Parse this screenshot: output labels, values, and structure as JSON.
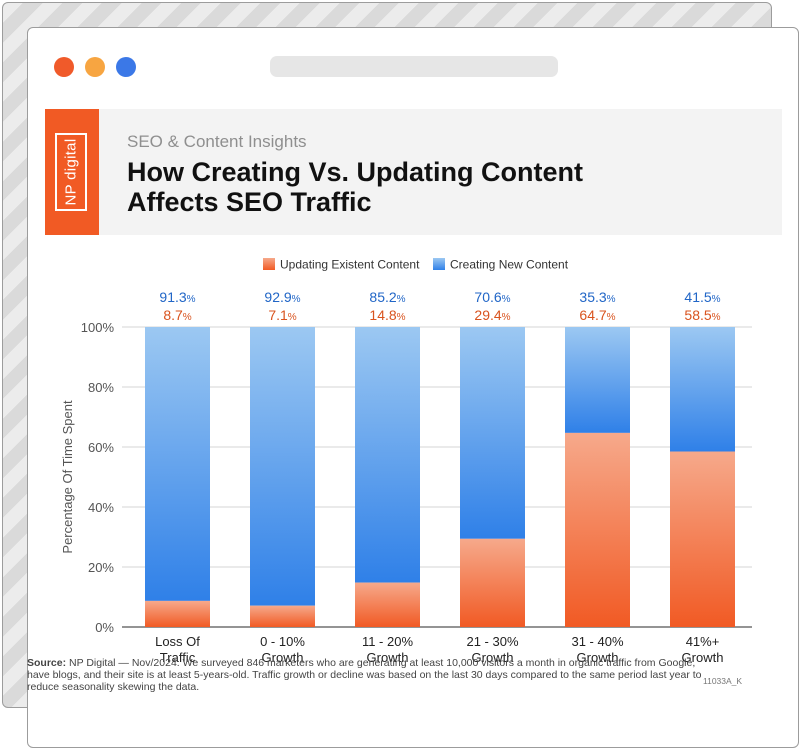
{
  "header": {
    "brand": "NP digital",
    "subtitle": "SEO & Content Insights",
    "title_line1": "How Creating Vs. Updating Content",
    "title_line2": "Affects SEO Traffic"
  },
  "chart_data": {
    "type": "bar",
    "stacked": true,
    "ylabel": "Percentage Of Time Spent",
    "ylim": [
      0,
      100
    ],
    "yticks": [
      0,
      20,
      40,
      60,
      80,
      100
    ],
    "yticks_labels": [
      "0%",
      "20%",
      "40%",
      "60%",
      "80%",
      "100%"
    ],
    "categories": [
      [
        "Loss Of",
        "Traffic"
      ],
      [
        "0 - 10%",
        "Growth"
      ],
      [
        "11 - 20%",
        "Growth"
      ],
      [
        "21 - 30%",
        "Growth"
      ],
      [
        "31 - 40%",
        "Growth"
      ],
      [
        "41%+",
        "Growth"
      ]
    ],
    "series": [
      {
        "name": "Updating Existent Content",
        "color": "#f15a24",
        "values": [
          8.7,
          7.1,
          14.8,
          29.4,
          64.7,
          58.5
        ],
        "labels": [
          "8.7",
          "7.1",
          "14.8",
          "29.4",
          "64.7",
          "58.5"
        ]
      },
      {
        "name": "Creating New Content",
        "color": "#2f80e8",
        "values": [
          91.3,
          92.9,
          85.2,
          70.6,
          35.3,
          41.5
        ],
        "labels": [
          "91.3",
          "92.9",
          "85.2",
          "70.6",
          "35.3",
          "41.5"
        ]
      }
    ],
    "label_suffix": "%",
    "legend": "top-center",
    "grid": true
  },
  "source": {
    "label": "Source:",
    "text": "NP Digital — Nov/2024. We surveyed 846 marketers who are generating at least 10,000 visitors a month in organic traffic from Google, have blogs, and their site is at least 5-years-old. Traffic growth or decline was based on the last 30 days compared to the same period last year to reduce seasonality skewing the data.",
    "code": "11033A_K"
  }
}
